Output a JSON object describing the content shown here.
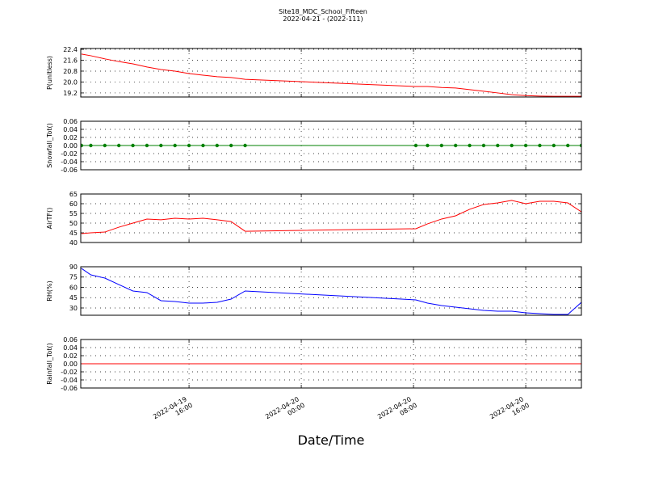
{
  "header": {
    "title": "Site18_MDC_School_Fifteen",
    "subtitle": "2022-04-21 - (2022-111)"
  },
  "x_axis": {
    "label": "Date/Time",
    "xlim": [
      "2022-04-19 08:17",
      "2022-04-20 19:58"
    ],
    "xticks": [
      "2022-04-19 16:00",
      "2022-04-20 00:00",
      "2022-04-20 08:00",
      "2022-04-20 16:00"
    ]
  },
  "chart_data": [
    {
      "type": "line",
      "ylabel": "P(unitless)",
      "color": "#ff0000",
      "x": [
        "2022-04-19 08:20",
        "2022-04-19 09:00",
        "2022-04-19 10:00",
        "2022-04-19 11:00",
        "2022-04-19 12:00",
        "2022-04-19 13:00",
        "2022-04-19 14:00",
        "2022-04-19 15:00",
        "2022-04-19 16:00",
        "2022-04-19 17:00",
        "2022-04-19 18:00",
        "2022-04-19 19:00",
        "2022-04-19 20:00",
        "2022-04-20 08:10",
        "2022-04-20 09:00",
        "2022-04-20 10:00",
        "2022-04-20 11:00",
        "2022-04-20 12:00",
        "2022-04-20 13:00",
        "2022-04-20 14:00",
        "2022-04-20 15:00",
        "2022-04-20 16:00",
        "2022-04-20 17:00",
        "2022-04-20 18:00",
        "2022-04-20 19:00",
        "2022-04-20 19:58"
      ],
      "values": [
        22.05,
        21.93,
        21.7,
        21.5,
        21.33,
        21.1,
        20.92,
        20.8,
        20.62,
        20.5,
        20.39,
        20.33,
        20.2,
        19.67,
        19.67,
        19.6,
        19.56,
        19.44,
        19.32,
        19.2,
        19.07,
        19.0,
        18.97,
        18.95,
        18.95,
        18.95
      ],
      "ylim": [
        18.9,
        22.46
      ],
      "yticks": [
        19.2,
        {
          "value": 20,
          "label": "20.0"
        },
        20.8,
        21.6,
        22.4
      ],
      "grid": true
    },
    {
      "type": "line",
      "ylabel": "Snowfall_Tot()",
      "color": "#008000",
      "marker": true,
      "x": [
        "2022-04-19 08:20",
        "2022-04-19 09:00",
        "2022-04-19 10:00",
        "2022-04-19 11:00",
        "2022-04-19 12:00",
        "2022-04-19 13:00",
        "2022-04-19 14:00",
        "2022-04-19 15:00",
        "2022-04-19 16:00",
        "2022-04-19 17:00",
        "2022-04-19 18:00",
        "2022-04-19 19:00",
        "2022-04-19 20:00",
        "2022-04-20 08:10",
        "2022-04-20 09:00",
        "2022-04-20 10:00",
        "2022-04-20 11:00",
        "2022-04-20 12:00",
        "2022-04-20 13:00",
        "2022-04-20 14:00",
        "2022-04-20 15:00",
        "2022-04-20 16:00",
        "2022-04-20 17:00",
        "2022-04-20 18:00",
        "2022-04-20 19:00",
        "2022-04-20 19:58"
      ],
      "values": [
        0,
        0,
        0,
        0,
        0,
        0,
        0,
        0,
        0,
        0,
        0,
        0,
        0,
        0,
        0,
        0,
        0,
        0,
        0,
        0,
        0,
        0,
        0,
        0,
        0,
        0
      ],
      "ylim": [
        -0.06,
        0.06
      ],
      "yticks": [
        -0.06,
        -0.04,
        -0.02,
        {
          "value": 0,
          "label": "0.00"
        },
        0.02,
        0.04,
        0.06
      ],
      "grid": true
    },
    {
      "type": "line",
      "ylabel": "AirTF()",
      "color": "#ff0000",
      "x": [
        "2022-04-19 08:20",
        "2022-04-19 09:00",
        "2022-04-19 10:00",
        "2022-04-19 11:00",
        "2022-04-19 12:00",
        "2022-04-19 13:00",
        "2022-04-19 14:00",
        "2022-04-19 15:00",
        "2022-04-19 16:00",
        "2022-04-19 17:00",
        "2022-04-19 18:00",
        "2022-04-19 19:00",
        "2022-04-19 20:00",
        "2022-04-20 08:10",
        "2022-04-20 09:00",
        "2022-04-20 10:00",
        "2022-04-20 11:00",
        "2022-04-20 12:00",
        "2022-04-20 13:00",
        "2022-04-20 14:00",
        "2022-04-20 15:00",
        "2022-04-20 16:00",
        "2022-04-20 17:00",
        "2022-04-20 18:00",
        "2022-04-20 19:00",
        "2022-04-20 19:58"
      ],
      "values": [
        44.6,
        45,
        45.4,
        47.9,
        50,
        52.1,
        51.7,
        52.5,
        52.1,
        52.5,
        51.7,
        50.8,
        45.8,
        47.1,
        49.6,
        52.1,
        53.75,
        57.1,
        59.6,
        60.4,
        61.7,
        60,
        61.25,
        61.25,
        60.4,
        55.8
      ],
      "ylim": [
        40,
        65
      ],
      "yticks": [
        40,
        45,
        50,
        55,
        60,
        65
      ],
      "grid": true
    },
    {
      "type": "line",
      "ylabel": "RH(%)",
      "color": "#0000ff",
      "x": [
        "2022-04-19 08:20",
        "2022-04-19 09:00",
        "2022-04-19 10:00",
        "2022-04-19 11:00",
        "2022-04-19 12:00",
        "2022-04-19 13:00",
        "2022-04-19 14:00",
        "2022-04-19 15:00",
        "2022-04-19 16:00",
        "2022-04-19 17:00",
        "2022-04-19 18:00",
        "2022-04-19 19:00",
        "2022-04-19 20:00",
        "2022-04-20 08:10",
        "2022-04-20 09:00",
        "2022-04-20 10:00",
        "2022-04-20 11:00",
        "2022-04-20 12:00",
        "2022-04-20 13:00",
        "2022-04-20 14:00",
        "2022-04-20 15:00",
        "2022-04-20 16:00",
        "2022-04-20 17:00",
        "2022-04-20 18:00",
        "2022-04-20 19:00",
        "2022-04-20 19:58"
      ],
      "values": [
        87.6,
        78.2,
        73.5,
        64,
        54.7,
        52.4,
        40.6,
        39.4,
        37.1,
        37.1,
        38.2,
        42.9,
        54.7,
        41.8,
        37.1,
        33.5,
        31.2,
        28.8,
        26.5,
        25.3,
        25.3,
        22.9,
        21.8,
        20.6,
        20.6,
        38.2
      ],
      "ylim": [
        19.4,
        90
      ],
      "yticks": [
        30,
        45,
        60,
        75,
        90
      ],
      "grid": true
    },
    {
      "type": "line",
      "ylabel": "Rainfall_Tot()",
      "color": "#ff0000",
      "x": [
        "2022-04-19 08:20",
        "2022-04-19 09:00",
        "2022-04-19 10:00",
        "2022-04-19 11:00",
        "2022-04-19 12:00",
        "2022-04-19 13:00",
        "2022-04-19 14:00",
        "2022-04-19 15:00",
        "2022-04-19 16:00",
        "2022-04-19 17:00",
        "2022-04-19 18:00",
        "2022-04-19 19:00",
        "2022-04-19 20:00",
        "2022-04-20 08:10",
        "2022-04-20 09:00",
        "2022-04-20 10:00",
        "2022-04-20 11:00",
        "2022-04-20 12:00",
        "2022-04-20 13:00",
        "2022-04-20 14:00",
        "2022-04-20 15:00",
        "2022-04-20 16:00",
        "2022-04-20 17:00",
        "2022-04-20 18:00",
        "2022-04-20 19:00",
        "2022-04-20 19:58"
      ],
      "values": [
        0,
        0,
        0,
        0,
        0,
        0,
        0,
        0,
        0,
        0,
        0,
        0,
        0,
        0,
        0,
        0,
        0,
        0,
        0,
        0,
        0,
        0,
        0,
        0,
        0,
        0
      ],
      "ylim": [
        -0.06,
        0.06
      ],
      "yticks": [
        -0.06,
        -0.04,
        -0.02,
        {
          "value": 0,
          "label": "0.00"
        },
        0.02,
        0.04,
        0.06
      ],
      "grid": true
    }
  ]
}
